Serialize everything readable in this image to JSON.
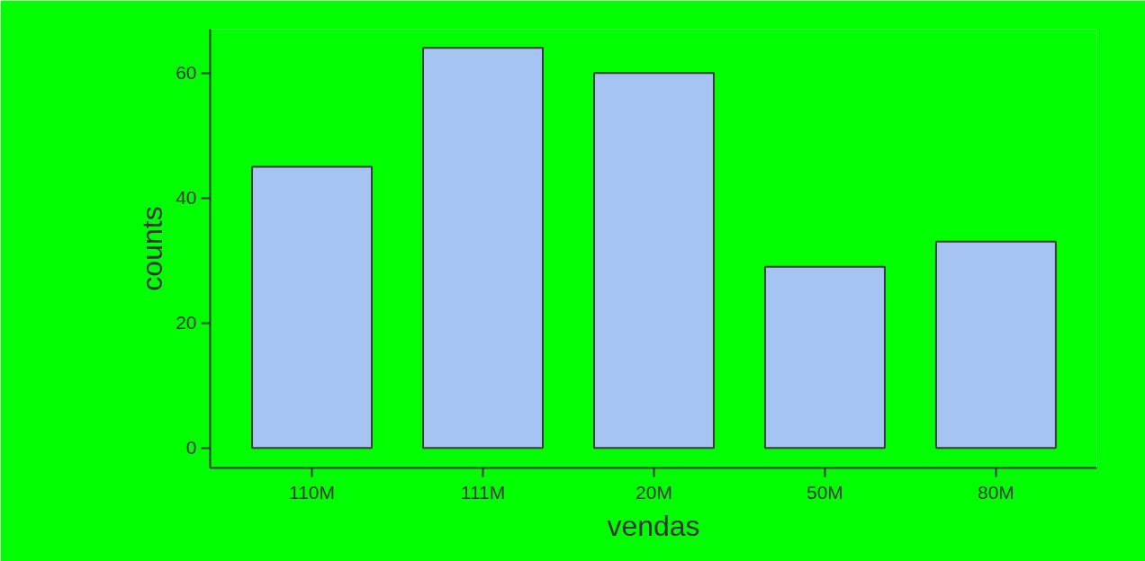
{
  "chart_data": {
    "type": "bar",
    "xlabel": "vendas",
    "ylabel": "counts",
    "categories": [
      "110M",
      "111M",
      "20M",
      "50M",
      "80M"
    ],
    "values": [
      45,
      64,
      60,
      29,
      33
    ],
    "color": "#a6c4f2",
    "ylim": [
      -3.2,
      67
    ],
    "yticks": [
      0,
      20,
      40,
      60
    ],
    "grid": false
  }
}
